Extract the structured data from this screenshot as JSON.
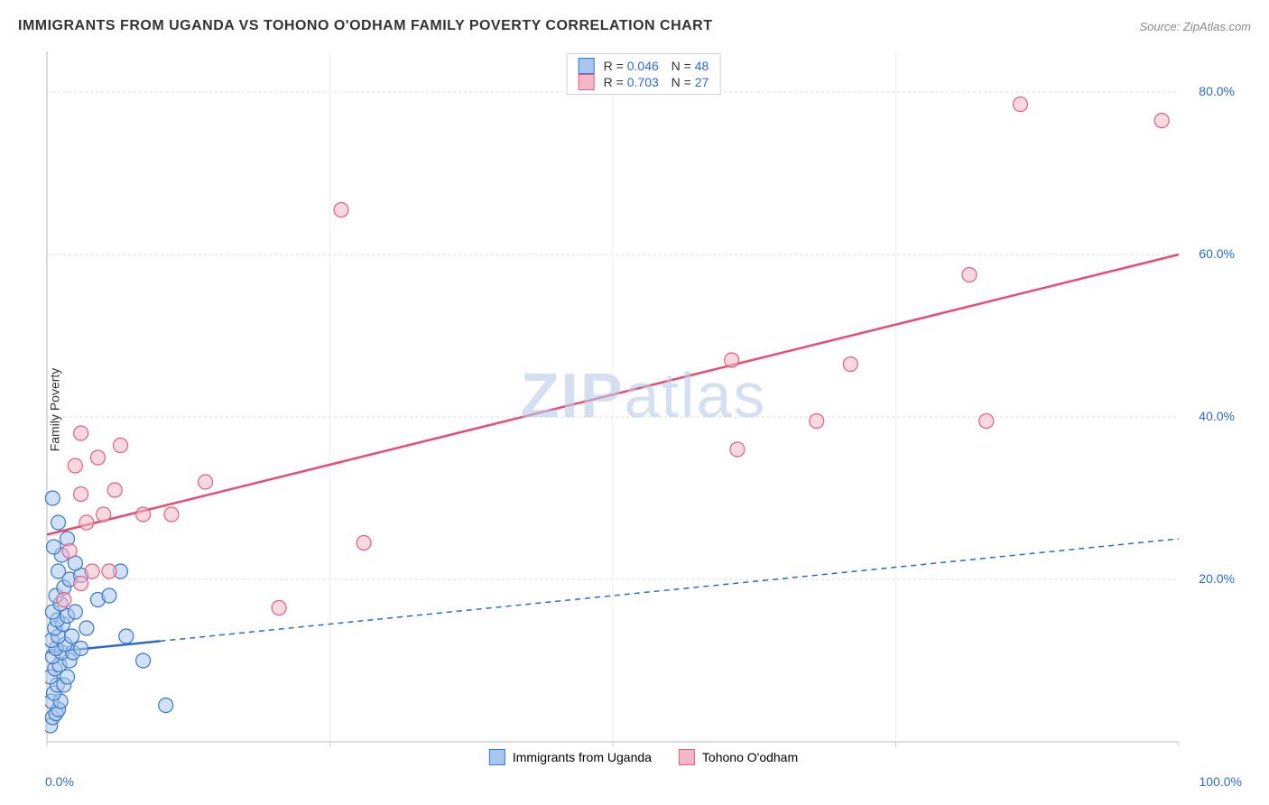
{
  "title": "IMMIGRANTS FROM UGANDA VS TOHONO O'ODHAM FAMILY POVERTY CORRELATION CHART",
  "source": "Source: ZipAtlas.com",
  "ylabel": "Family Poverty",
  "watermark": "ZIPatlas",
  "chart": {
    "type": "scatter",
    "xlim": [
      0,
      100
    ],
    "ylim": [
      0,
      85
    ],
    "xticks": [
      0,
      100
    ],
    "xtick_labels": [
      "0.0%",
      "100.0%"
    ],
    "yticks": [
      20,
      40,
      60,
      80
    ],
    "ytick_labels": [
      "20.0%",
      "40.0%",
      "60.0%",
      "80.0%"
    ],
    "grid_color": "#d8d8d8",
    "axis_color": "#d0d0d0",
    "background_color": "#ffffff",
    "marker_radius": 8,
    "marker_opacity": 0.55,
    "series": [
      {
        "name": "Immigrants from Uganda",
        "color_fill": "#a9c7ee",
        "color_stroke": "#3a78c9",
        "R": "0.046",
        "N": "48",
        "line": {
          "x1": 0,
          "y1": 11,
          "x2": 100,
          "y2": 25,
          "solid_until_x": 10,
          "color": "#2a6bcc",
          "width": 2.5,
          "dash": "6,5"
        },
        "points": [
          [
            0.3,
            2
          ],
          [
            0.5,
            3
          ],
          [
            0.8,
            3.5
          ],
          [
            1.0,
            4
          ],
          [
            0.4,
            5
          ],
          [
            1.2,
            5
          ],
          [
            0.6,
            6
          ],
          [
            0.9,
            7
          ],
          [
            1.5,
            7
          ],
          [
            0.3,
            8
          ],
          [
            1.8,
            8
          ],
          [
            0.7,
            9
          ],
          [
            1.1,
            9.5
          ],
          [
            2.0,
            10
          ],
          [
            0.5,
            10.5
          ],
          [
            1.3,
            11
          ],
          [
            2.3,
            11
          ],
          [
            0.8,
            11.5
          ],
          [
            1.6,
            12
          ],
          [
            3.0,
            11.5
          ],
          [
            0.4,
            12.5
          ],
          [
            1.0,
            13
          ],
          [
            2.2,
            13
          ],
          [
            0.7,
            14
          ],
          [
            1.4,
            14.5
          ],
          [
            3.5,
            14
          ],
          [
            0.9,
            15
          ],
          [
            1.8,
            15.5
          ],
          [
            0.5,
            16
          ],
          [
            2.5,
            16
          ],
          [
            1.2,
            17
          ],
          [
            4.5,
            17.5
          ],
          [
            0.8,
            18
          ],
          [
            5.5,
            18
          ],
          [
            1.5,
            19
          ],
          [
            2.0,
            20
          ],
          [
            3.0,
            20.5
          ],
          [
            1.0,
            21
          ],
          [
            6.5,
            21
          ],
          [
            2.5,
            22
          ],
          [
            1.3,
            23
          ],
          [
            0.6,
            24
          ],
          [
            1.8,
            25
          ],
          [
            1.0,
            27
          ],
          [
            0.5,
            30
          ],
          [
            10.5,
            4.5
          ],
          [
            8.5,
            10
          ],
          [
            7.0,
            13
          ]
        ]
      },
      {
        "name": "Tohono O'odham",
        "color_fill": "#f5b8c9",
        "color_stroke": "#e0607f",
        "R": "0.703",
        "N": "27",
        "line": {
          "x1": 0,
          "y1": 25.5,
          "x2": 100,
          "y2": 60,
          "solid_until_x": 100,
          "color": "#e94b73",
          "width": 2.5
        },
        "points": [
          [
            1.5,
            17.5
          ],
          [
            3.0,
            19.5
          ],
          [
            4.0,
            21
          ],
          [
            5.5,
            21
          ],
          [
            2.0,
            23.5
          ],
          [
            3.5,
            27
          ],
          [
            5.0,
            28
          ],
          [
            8.5,
            28
          ],
          [
            11.0,
            28
          ],
          [
            3.0,
            30.5
          ],
          [
            6.0,
            31
          ],
          [
            14.0,
            32
          ],
          [
            2.5,
            34
          ],
          [
            4.5,
            35
          ],
          [
            6.5,
            36.5
          ],
          [
            3.0,
            38
          ],
          [
            20.5,
            16.5
          ],
          [
            28.0,
            24.5
          ],
          [
            26.0,
            65.5
          ],
          [
            61.0,
            36
          ],
          [
            68.0,
            39.5
          ],
          [
            83.0,
            39.5
          ],
          [
            60.5,
            47
          ],
          [
            71.0,
            46.5
          ],
          [
            81.5,
            57.5
          ],
          [
            86.0,
            78.5
          ],
          [
            98.5,
            76.5
          ]
        ]
      }
    ]
  },
  "legend_top": [
    {
      "swatch_fill": "#a9c7ee",
      "swatch_stroke": "#3a78c9"
    },
    {
      "swatch_fill": "#f5b8c9",
      "swatch_stroke": "#e0607f"
    }
  ],
  "legend_bottom": [
    {
      "label": "Immigrants from Uganda",
      "swatch_fill": "#a9c7ee",
      "swatch_stroke": "#3a78c9"
    },
    {
      "label": "Tohono O'odham",
      "swatch_fill": "#f5b8c9",
      "swatch_stroke": "#e0607f"
    }
  ]
}
